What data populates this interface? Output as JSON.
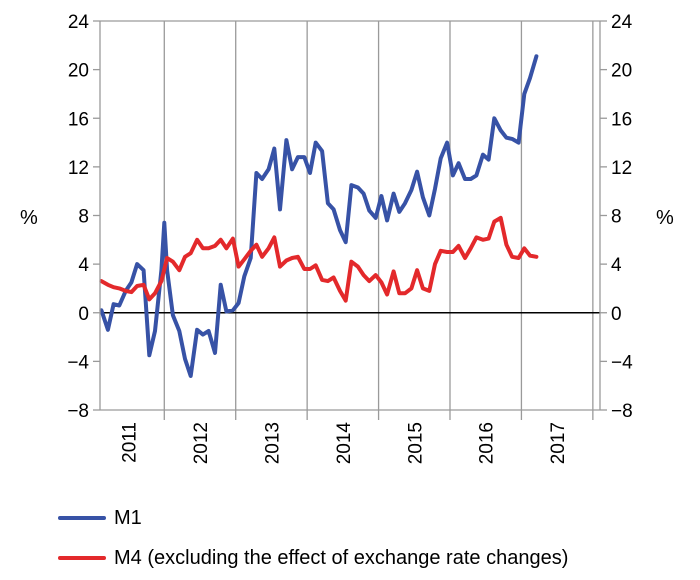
{
  "chart_data": {
    "type": "line",
    "y_unit_left": "%",
    "y_unit_right": "%",
    "ylim": [
      -8,
      24
    ],
    "yticks": [
      -8,
      -4,
      0,
      4,
      8,
      12,
      16,
      20,
      24
    ],
    "ytick_labels": [
      "−8",
      "−4",
      "0",
      "4",
      "8",
      "12",
      "16",
      "20",
      "24"
    ],
    "xlim": [
      2010.6,
      2017.6
    ],
    "year_labels": [
      "2011",
      "2012",
      "2013",
      "2014",
      "2015",
      "2016",
      "2017"
    ],
    "year_label_positions": [
      2011,
      2012,
      2013,
      2014,
      2015,
      2016,
      2017
    ],
    "year_boundaries": [
      2011.5,
      2012.5,
      2013.5,
      2014.5,
      2015.5,
      2016.5,
      2017.5
    ],
    "grid": "vertical lines at year boundaries",
    "legend_position": "bottom-left",
    "series": [
      {
        "name": "M1",
        "color": "#3752a6",
        "points": [
          [
            2010.62,
            0.2
          ],
          [
            2010.71,
            -1.4
          ],
          [
            2010.79,
            0.7
          ],
          [
            2010.87,
            0.6
          ],
          [
            2010.96,
            1.8
          ],
          [
            2011.04,
            2.5
          ],
          [
            2011.12,
            4.0
          ],
          [
            2011.21,
            3.5
          ],
          [
            2011.29,
            -3.5
          ],
          [
            2011.37,
            -1.5
          ],
          [
            2011.46,
            3.5
          ],
          [
            2011.5,
            7.4
          ],
          [
            2011.54,
            3.5
          ],
          [
            2011.62,
            -0.2
          ],
          [
            2011.71,
            -1.5
          ],
          [
            2011.79,
            -3.8
          ],
          [
            2011.87,
            -5.2
          ],
          [
            2011.96,
            -1.4
          ],
          [
            2012.04,
            -1.8
          ],
          [
            2012.12,
            -1.5
          ],
          [
            2012.21,
            -3.3
          ],
          [
            2012.29,
            2.3
          ],
          [
            2012.37,
            0.1
          ],
          [
            2012.46,
            0.2
          ],
          [
            2012.54,
            0.8
          ],
          [
            2012.62,
            3.0
          ],
          [
            2012.71,
            4.5
          ],
          [
            2012.79,
            11.5
          ],
          [
            2012.87,
            11.0
          ],
          [
            2012.96,
            11.8
          ],
          [
            2013.04,
            13.5
          ],
          [
            2013.12,
            8.5
          ],
          [
            2013.21,
            14.2
          ],
          [
            2013.29,
            11.8
          ],
          [
            2013.37,
            12.8
          ],
          [
            2013.46,
            12.8
          ],
          [
            2013.54,
            11.5
          ],
          [
            2013.62,
            14.0
          ],
          [
            2013.71,
            13.3
          ],
          [
            2013.79,
            9.0
          ],
          [
            2013.87,
            8.5
          ],
          [
            2013.96,
            6.8
          ],
          [
            2014.04,
            5.8
          ],
          [
            2014.12,
            10.5
          ],
          [
            2014.21,
            10.3
          ],
          [
            2014.29,
            9.8
          ],
          [
            2014.37,
            8.4
          ],
          [
            2014.46,
            7.8
          ],
          [
            2014.54,
            9.6
          ],
          [
            2014.62,
            7.6
          ],
          [
            2014.71,
            9.8
          ],
          [
            2014.79,
            8.3
          ],
          [
            2014.87,
            9.0
          ],
          [
            2014.96,
            10.1
          ],
          [
            2015.04,
            11.6
          ],
          [
            2015.12,
            9.5
          ],
          [
            2015.21,
            8.0
          ],
          [
            2015.29,
            10.2
          ],
          [
            2015.37,
            12.7
          ],
          [
            2015.46,
            14.0
          ],
          [
            2015.54,
            11.3
          ],
          [
            2015.62,
            12.3
          ],
          [
            2015.71,
            11.0
          ],
          [
            2015.79,
            11.0
          ],
          [
            2015.87,
            11.3
          ],
          [
            2015.96,
            13.0
          ],
          [
            2016.04,
            12.6
          ],
          [
            2016.12,
            16.0
          ],
          [
            2016.21,
            15.0
          ],
          [
            2016.29,
            14.4
          ],
          [
            2016.37,
            14.3
          ],
          [
            2016.46,
            14.0
          ],
          [
            2016.54,
            18.0
          ],
          [
            2016.62,
            19.3
          ],
          [
            2016.71,
            21.1
          ]
        ]
      },
      {
        "name": "M4 (excluding the effect of exchange rate changes)",
        "color": "#e3292b",
        "points": [
          [
            2010.62,
            2.6
          ],
          [
            2010.71,
            2.3
          ],
          [
            2010.79,
            2.1
          ],
          [
            2010.87,
            2.0
          ],
          [
            2010.96,
            1.8
          ],
          [
            2011.04,
            1.7
          ],
          [
            2011.12,
            2.2
          ],
          [
            2011.21,
            2.3
          ],
          [
            2011.29,
            1.1
          ],
          [
            2011.37,
            1.6
          ],
          [
            2011.46,
            2.6
          ],
          [
            2011.54,
            4.5
          ],
          [
            2011.62,
            4.2
          ],
          [
            2011.71,
            3.5
          ],
          [
            2011.79,
            4.6
          ],
          [
            2011.87,
            4.9
          ],
          [
            2011.96,
            6.0
          ],
          [
            2012.04,
            5.3
          ],
          [
            2012.12,
            5.3
          ],
          [
            2012.21,
            5.5
          ],
          [
            2012.29,
            6.0
          ],
          [
            2012.37,
            5.3
          ],
          [
            2012.46,
            6.1
          ],
          [
            2012.54,
            3.8
          ],
          [
            2012.62,
            4.4
          ],
          [
            2012.71,
            5.1
          ],
          [
            2012.79,
            5.6
          ],
          [
            2012.87,
            4.6
          ],
          [
            2012.96,
            5.3
          ],
          [
            2013.04,
            6.2
          ],
          [
            2013.12,
            3.8
          ],
          [
            2013.21,
            4.3
          ],
          [
            2013.29,
            4.5
          ],
          [
            2013.37,
            4.6
          ],
          [
            2013.46,
            3.6
          ],
          [
            2013.54,
            3.6
          ],
          [
            2013.62,
            3.9
          ],
          [
            2013.71,
            2.7
          ],
          [
            2013.79,
            2.6
          ],
          [
            2013.87,
            2.9
          ],
          [
            2013.96,
            1.8
          ],
          [
            2014.04,
            1.0
          ],
          [
            2014.12,
            4.2
          ],
          [
            2014.21,
            3.8
          ],
          [
            2014.29,
            3.1
          ],
          [
            2014.37,
            2.6
          ],
          [
            2014.46,
            3.1
          ],
          [
            2014.54,
            2.5
          ],
          [
            2014.62,
            1.5
          ],
          [
            2014.71,
            3.4
          ],
          [
            2014.79,
            1.6
          ],
          [
            2014.87,
            1.6
          ],
          [
            2014.96,
            2.0
          ],
          [
            2015.04,
            3.5
          ],
          [
            2015.12,
            2.0
          ],
          [
            2015.21,
            1.8
          ],
          [
            2015.29,
            4.0
          ],
          [
            2015.37,
            5.1
          ],
          [
            2015.46,
            5.0
          ],
          [
            2015.54,
            5.0
          ],
          [
            2015.62,
            5.5
          ],
          [
            2015.71,
            4.5
          ],
          [
            2015.79,
            5.3
          ],
          [
            2015.87,
            6.2
          ],
          [
            2015.96,
            6.0
          ],
          [
            2016.04,
            6.1
          ],
          [
            2016.12,
            7.5
          ],
          [
            2016.21,
            7.8
          ],
          [
            2016.29,
            5.6
          ],
          [
            2016.37,
            4.6
          ],
          [
            2016.46,
            4.5
          ],
          [
            2016.54,
            5.3
          ],
          [
            2016.62,
            4.7
          ],
          [
            2016.71,
            4.6
          ]
        ]
      }
    ]
  }
}
